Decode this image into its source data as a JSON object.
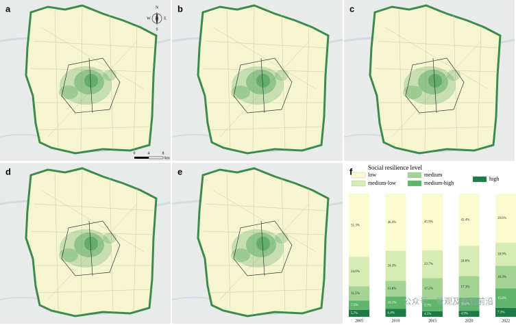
{
  "panels": {
    "labels": [
      "a",
      "b",
      "c",
      "d",
      "e",
      "f"
    ]
  },
  "compass": {
    "n": "N",
    "e": "E",
    "s": "S",
    "w": "W"
  },
  "scale_bar": {
    "ticks": [
      "0",
      "4",
      "8"
    ],
    "unit": "km"
  },
  "watermark": "公众号 · 景观及规划前沿",
  "chart_data": {
    "type": "stacked_bar",
    "legend_title": "Social resilience level",
    "categories": [
      "2005",
      "2010",
      "2015",
      "2020",
      "2022"
    ],
    "ylim": [
      0,
      100
    ],
    "series": [
      {
        "name": "low",
        "color": "#fbfbcf",
        "values": [
          51.3,
          46.4,
          45.9,
          42.4,
          39.6
        ],
        "value_labels": [
          "51.3%",
          "46.4%",
          "45.9%",
          "42.4%",
          "39.6%"
        ]
      },
      {
        "name": "medium-low",
        "color": "#d6ecb2",
        "values": [
          24.0,
          24.3,
          22.7,
          24.6,
          18.9
        ],
        "value_labels": [
          "24.0%",
          "24.3%",
          "22.7%",
          "24.6%",
          "18.9%"
        ]
      },
      {
        "name": "medium",
        "color": "#a3d493",
        "values": [
          11.5,
          12.8,
          17.2,
          17.3,
          18.3
        ],
        "value_labels": [
          "11.5%",
          "12.8%",
          "17.2%",
          "17.3%",
          "18.3%"
        ]
      },
      {
        "name": "medium-high",
        "color": "#5fb56c",
        "values": [
          7.5,
          10.1,
          9.7,
          10.8,
          15.8
        ],
        "value_labels": [
          "7.5%",
          "10.1%",
          "9.7%",
          "10.8%",
          "15.8%"
        ]
      },
      {
        "name": "high",
        "color": "#1e7a45",
        "values": [
          5.7,
          6.4,
          4.5,
          4.9,
          7.3
        ],
        "value_labels": [
          "5.7%",
          "6.4%",
          "4.5%",
          "4.9%",
          "7.3%"
        ]
      }
    ]
  }
}
